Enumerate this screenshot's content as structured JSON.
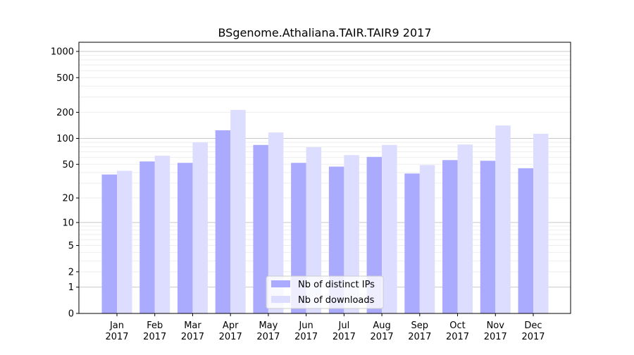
{
  "chart_data": {
    "type": "bar",
    "title": "BSgenome.Athaliana.TAIR.TAIR9 2017",
    "xlabel": "",
    "ylabel": "",
    "y_scale": "log10(1+y)",
    "ylim": [
      0,
      1273
    ],
    "grid": true,
    "legend_placement": "bottom-center",
    "categories": [
      "Jan\n2017",
      "Feb\n2017",
      "Mar\n2017",
      "Apr\n2017",
      "May\n2017",
      "Jun\n2017",
      "Jul\n2017",
      "Aug\n2017",
      "Sep\n2017",
      "Oct\n2017",
      "Nov\n2017",
      "Dec\n2017"
    ],
    "y_ticks": [
      0,
      1,
      2,
      5,
      10,
      20,
      50,
      100,
      200,
      500,
      1000
    ],
    "series": [
      {
        "name": "Nb of distinct IPs",
        "color": "#aaaaff",
        "values": [
          38,
          54,
          52,
          124,
          84,
          52,
          47,
          61,
          39,
          56,
          55,
          45
        ]
      },
      {
        "name": "Nb of downloads",
        "color": "#ddddff",
        "values": [
          42,
          63,
          90,
          213,
          117,
          79,
          64,
          84,
          49,
          85,
          141,
          113
        ]
      }
    ]
  }
}
